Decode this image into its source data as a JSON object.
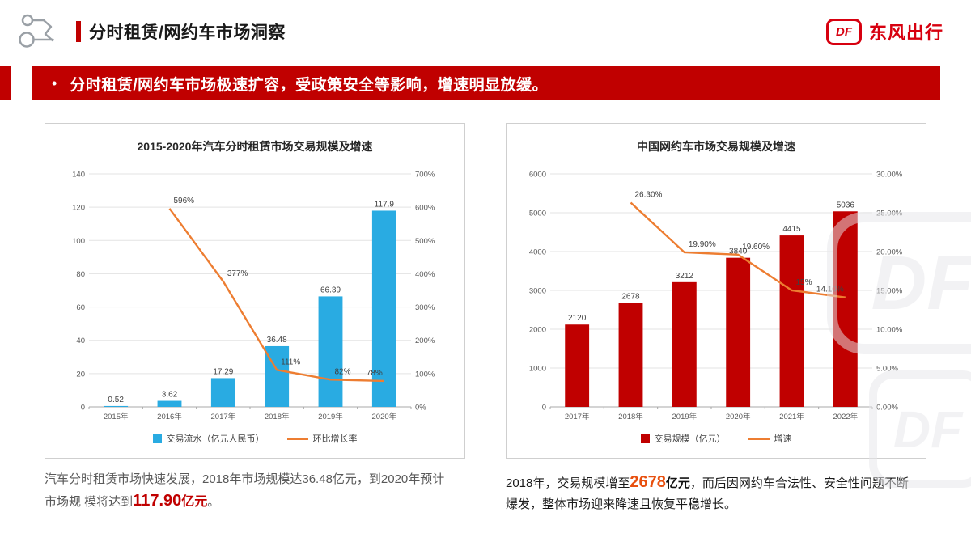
{
  "header": {
    "title": "分时租赁/网约车市场洞察",
    "brand": "东风出行",
    "logo_text": "DF"
  },
  "banner": {
    "bullet": "•",
    "text": "分时租赁/网约车市场极速扩容，受政策安全等影响，增速明显放缓。"
  },
  "captions": {
    "left": {
      "pre": "汽车分时租赁市场快速发展，2018年市场规模达36.48亿元，到2020年预计市场规 模将达到",
      "highlight": "117.90",
      "unit": "亿元",
      "post": "。"
    },
    "right": {
      "pre": "2018年，交易规模增至",
      "highlight": "2678",
      "unit": "亿元",
      "post": "，而后因网约车合法性、安全性问题不断爆发，整体市场迎来降速且恢复平稳增长。"
    }
  },
  "colors": {
    "accent_red": "#c00000",
    "brand_red": "#d7000f",
    "bar_cyan": "#29abe2",
    "bar_dark_red": "#c00000",
    "line_orange": "#ed7d31"
  },
  "chart_data": [
    {
      "type": "bar+line",
      "title": "2015-2020年汽车分时租赁市场交易规模及增速",
      "categories": [
        "2015年",
        "2016年",
        "2017年",
        "2018年",
        "2019年",
        "2020年"
      ],
      "bar_series": {
        "name": "交易流水（亿元人民币）",
        "color": "#29abe2",
        "values": [
          0.52,
          3.62,
          17.29,
          36.48,
          66.39,
          117.9
        ],
        "labels": [
          "0.52",
          "3.62",
          "17.29",
          "36.48",
          "66.39",
          "117.9"
        ]
      },
      "line_series": {
        "name": "环比增长率",
        "color": "#ed7d31",
        "axis": "right",
        "values": [
          null,
          596,
          377,
          111,
          82,
          78
        ],
        "labels": [
          null,
          "596%",
          "377%",
          "111%",
          "82%",
          "78%"
        ]
      },
      "y_left": {
        "min": 0,
        "max": 140,
        "step": 20,
        "labels": [
          "0",
          "20",
          "40",
          "60",
          "80",
          "100",
          "120",
          "140"
        ]
      },
      "y_right": {
        "min": 0,
        "max": 700,
        "step": 100,
        "labels": [
          "0%",
          "100%",
          "200%",
          "300%",
          "400%",
          "500%",
          "600%",
          "700%"
        ]
      },
      "grid": true,
      "legend_position": "bottom"
    },
    {
      "type": "bar+line",
      "title": "中国网约车市场交易规模及增速",
      "categories": [
        "2017年",
        "2018年",
        "2019年",
        "2020年",
        "2021年",
        "2022年"
      ],
      "bar_series": {
        "name": "交易规模（亿元）",
        "color": "#c00000",
        "values": [
          2120,
          2678,
          3212,
          3840,
          4415,
          5036
        ],
        "labels": [
          "2120",
          "2678",
          "3212",
          "3840",
          "4415",
          "5036"
        ]
      },
      "line_series": {
        "name": "增速",
        "color": "#ed7d31",
        "axis": "right",
        "values": [
          null,
          26.3,
          19.9,
          19.6,
          15,
          14.1
        ],
        "labels": [
          null,
          "26.30%",
          "19.90%",
          "19.60%",
          "15%",
          "14.10%"
        ]
      },
      "y_left": {
        "min": 0,
        "max": 6000,
        "step": 1000,
        "labels": [
          "0",
          "1000",
          "2000",
          "3000",
          "4000",
          "5000",
          "6000"
        ]
      },
      "y_right": {
        "min": 0,
        "max": 30,
        "step": 5,
        "labels": [
          "0.00%",
          "5.00%",
          "10.00%",
          "15.00%",
          "20.00%",
          "25.00%",
          "30.00%"
        ]
      },
      "grid": true,
      "legend_position": "bottom"
    }
  ]
}
